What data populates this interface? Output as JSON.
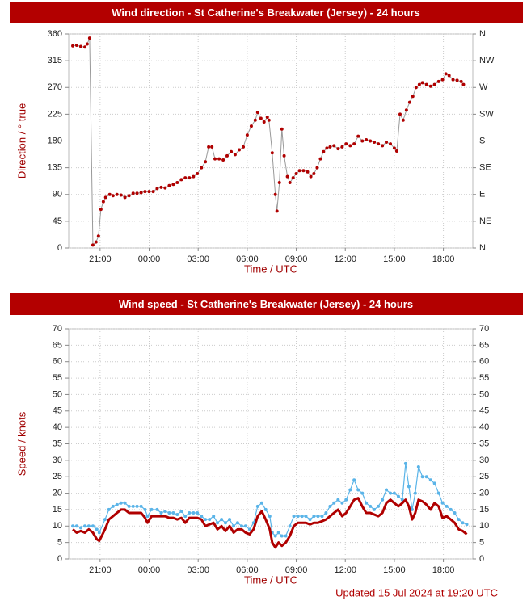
{
  "chart_data": [
    {
      "type": "line",
      "title": "Wind direction - St Catherine's Breakwater (Jersey) - 24 hours",
      "y_label": "Direction / ° true",
      "x_label": "Time / UTC",
      "xlim": [
        19.08,
        43.8
      ],
      "xticks": [
        {
          "value": 21,
          "label": "21:00"
        },
        {
          "value": 24,
          "label": "00:00"
        },
        {
          "value": 27,
          "label": "03:00"
        },
        {
          "value": 30,
          "label": "06:00"
        },
        {
          "value": 33,
          "label": "09:00"
        },
        {
          "value": 36,
          "label": "12:00"
        },
        {
          "value": 39,
          "label": "15:00"
        },
        {
          "value": 42,
          "label": "18:00"
        }
      ],
      "ylim": [
        0,
        360
      ],
      "yticks": [
        0,
        45,
        90,
        135,
        180,
        225,
        270,
        315,
        360
      ],
      "y2lim": [
        0,
        360
      ],
      "y2ticks": [
        {
          "value": 0,
          "label": "N"
        },
        {
          "value": 45,
          "label": "NE"
        },
        {
          "value": 90,
          "label": "E"
        },
        {
          "value": 135,
          "label": "SE"
        },
        {
          "value": 180,
          "label": "S"
        },
        {
          "value": 225,
          "label": "SW"
        },
        {
          "value": 270,
          "label": "W"
        },
        {
          "value": 315,
          "label": "NW"
        },
        {
          "value": 360,
          "label": "N"
        }
      ],
      "y2_color": "#a00000",
      "grid": true,
      "x": [
        19.33,
        19.57,
        19.82,
        20.07,
        20.21,
        20.36,
        20.56,
        20.75,
        20.9,
        21.05,
        21.2,
        21.34,
        21.59,
        21.79,
        22.03,
        22.28,
        22.52,
        22.77,
        23.02,
        23.26,
        23.51,
        23.75,
        24.0,
        24.25,
        24.49,
        24.74,
        24.98,
        25.23,
        25.48,
        25.72,
        25.97,
        26.21,
        26.46,
        26.71,
        26.95,
        27.2,
        27.44,
        27.64,
        27.84,
        28.03,
        28.28,
        28.53,
        28.77,
        29.02,
        29.26,
        29.51,
        29.76,
        30.0,
        30.25,
        30.49,
        30.64,
        30.84,
        31.03,
        31.23,
        31.33,
        31.53,
        31.72,
        31.82,
        31.97,
        32.12,
        32.26,
        32.46,
        32.61,
        32.81,
        33.0,
        33.2,
        33.44,
        33.69,
        33.89,
        34.08,
        34.28,
        34.48,
        34.67,
        34.87,
        35.07,
        35.31,
        35.56,
        35.81,
        36.05,
        36.3,
        36.54,
        36.79,
        37.04,
        37.28,
        37.53,
        37.77,
        38.02,
        38.27,
        38.51,
        38.76,
        39.0,
        39.15,
        39.35,
        39.54,
        39.74,
        39.94,
        40.13,
        40.33,
        40.53,
        40.72,
        40.97,
        41.22,
        41.46,
        41.71,
        41.95,
        42.15,
        42.35,
        42.59,
        42.84,
        43.09,
        43.23
      ],
      "series": [
        {
          "color": "#b00000",
          "line_color": "#999999",
          "line_width": 1,
          "markers": true,
          "values": [
            340,
            341,
            339,
            338,
            343,
            353,
            5,
            10,
            20,
            65,
            78,
            85,
            90,
            88,
            90,
            89,
            85,
            88,
            92,
            92,
            93,
            95,
            95,
            95,
            100,
            102,
            101,
            105,
            107,
            110,
            115,
            118,
            118,
            120,
            125,
            135,
            145,
            170,
            170,
            150,
            150,
            148,
            155,
            162,
            157,
            165,
            170,
            190,
            205,
            215,
            228,
            218,
            212,
            220,
            215,
            160,
            90,
            62,
            110,
            200,
            155,
            120,
            110,
            118,
            125,
            130,
            130,
            128,
            120,
            125,
            135,
            150,
            162,
            168,
            170,
            172,
            167,
            170,
            175,
            172,
            175,
            188,
            180,
            182,
            180,
            178,
            175,
            172,
            178,
            175,
            168,
            163,
            225,
            215,
            232,
            245,
            255,
            270,
            275,
            278,
            275,
            272,
            275,
            280,
            283,
            293,
            290,
            283,
            282,
            280,
            275
          ]
        }
      ]
    },
    {
      "type": "line",
      "title": "Wind speed - St Catherine's Breakwater (Jersey) - 24 hours",
      "y_label": "Speed / knots",
      "x_label": "Time / UTC",
      "xlim": [
        19.08,
        43.8
      ],
      "xticks": [
        {
          "value": 21,
          "label": "21:00"
        },
        {
          "value": 24,
          "label": "00:00"
        },
        {
          "value": 27,
          "label": "03:00"
        },
        {
          "value": 30,
          "label": "06:00"
        },
        {
          "value": 33,
          "label": "09:00"
        },
        {
          "value": 36,
          "label": "12:00"
        },
        {
          "value": 39,
          "label": "15:00"
        },
        {
          "value": 42,
          "label": "18:00"
        }
      ],
      "ylim": [
        0,
        70
      ],
      "yticks": [
        0,
        5,
        10,
        15,
        20,
        25,
        30,
        35,
        40,
        45,
        50,
        55,
        60,
        65,
        70
      ],
      "y2lim": [
        0,
        70
      ],
      "y2ticks": [
        0,
        5,
        10,
        15,
        20,
        25,
        30,
        35,
        40,
        45,
        50,
        55,
        60,
        65,
        70
      ],
      "y2_color": "#222222",
      "grid": true,
      "x": [
        19.33,
        19.57,
        19.82,
        20.07,
        20.31,
        20.56,
        20.8,
        20.95,
        21.3,
        21.54,
        21.79,
        22.03,
        22.28,
        22.52,
        22.77,
        23.02,
        23.26,
        23.51,
        23.75,
        23.9,
        24.15,
        24.49,
        24.74,
        24.98,
        25.23,
        25.48,
        25.72,
        25.97,
        26.21,
        26.46,
        26.71,
        26.95,
        27.2,
        27.44,
        27.69,
        27.94,
        28.18,
        28.43,
        28.67,
        28.92,
        29.17,
        29.41,
        29.66,
        29.9,
        30.15,
        30.39,
        30.64,
        30.89,
        31.13,
        31.38,
        31.53,
        31.72,
        31.92,
        32.12,
        32.36,
        32.61,
        32.85,
        33.1,
        33.35,
        33.59,
        33.84,
        34.08,
        34.33,
        34.58,
        34.82,
        35.07,
        35.31,
        35.56,
        35.81,
        36.05,
        36.3,
        36.54,
        36.79,
        37.04,
        37.28,
        37.53,
        37.77,
        38.02,
        38.27,
        38.51,
        38.76,
        39.0,
        39.25,
        39.49,
        39.69,
        39.89,
        40.09,
        40.28,
        40.48,
        40.72,
        40.97,
        41.22,
        41.46,
        41.71,
        41.95,
        42.2,
        42.45,
        42.69,
        42.94,
        43.18,
        43.43
      ],
      "series": [
        {
          "color": "#5ab4e8",
          "line_width": 1.2,
          "markers": true,
          "values": [
            10,
            10,
            9.5,
            10,
            10,
            10,
            9,
            8,
            12,
            15,
            16,
            16.5,
            17,
            17,
            16,
            16,
            16,
            16,
            15,
            13,
            15,
            15,
            14,
            14.5,
            14,
            14,
            13.5,
            14.5,
            13,
            14,
            14,
            14,
            13,
            12,
            12,
            13,
            11,
            12,
            11,
            12,
            10,
            11,
            10,
            10,
            9,
            11,
            16,
            17,
            15,
            13,
            8,
            7,
            8,
            7,
            7,
            10,
            13,
            13,
            13,
            13,
            12,
            13,
            13,
            13,
            14,
            16,
            17,
            18,
            17,
            18,
            21,
            24,
            21,
            20,
            17,
            16,
            15,
            16,
            18,
            21,
            20,
            20,
            19,
            18,
            29,
            22,
            15,
            20,
            28,
            25,
            25,
            24,
            23,
            20,
            17,
            16,
            15,
            14,
            12,
            11,
            10.5
          ]
        },
        {
          "color": "#b00000",
          "line_width": 3,
          "markers": false,
          "values": [
            9,
            8,
            8.5,
            8,
            9,
            8,
            6,
            5.5,
            9,
            12,
            13,
            14,
            15,
            15,
            14,
            14,
            14,
            14,
            12.5,
            11,
            13,
            13,
            13,
            13,
            12.5,
            12.5,
            12,
            12.5,
            11,
            12.5,
            12.5,
            12.5,
            12,
            10,
            10.5,
            11,
            9,
            10,
            8.5,
            10,
            8,
            9,
            9,
            8,
            7.5,
            9,
            13,
            14.5,
            12,
            9,
            5,
            3.5,
            5,
            4,
            5,
            7,
            10,
            11,
            11,
            11,
            10.5,
            11,
            11,
            11.5,
            12,
            13,
            14,
            15,
            13,
            14,
            16,
            18,
            18.5,
            16,
            14,
            14,
            13.5,
            13,
            14,
            17,
            18,
            17,
            16,
            17,
            18,
            16,
            12,
            14,
            18,
            17.5,
            16.5,
            15,
            17,
            16,
            12.5,
            13,
            12,
            11,
            9,
            8.5,
            7.5
          ]
        }
      ]
    }
  ],
  "footer": "Updated 15 Jul 2024 at 19:20 UTC"
}
